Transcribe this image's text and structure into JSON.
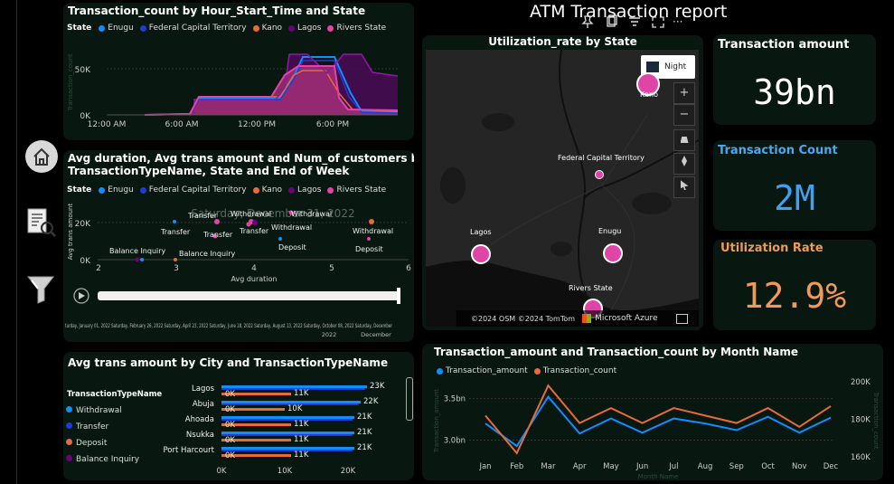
{
  "report_title": "ATM Transaction report",
  "state_legend": {
    "label": "State",
    "items": [
      {
        "name": "Enugu",
        "color": "#118DFF"
      },
      {
        "name": "Federal Capital Territory",
        "color": "#1F3BD6"
      },
      {
        "name": "Kano",
        "color": "#E66C37"
      },
      {
        "name": "Lagos",
        "color": "#6B007B"
      },
      {
        "name": "Rivers State",
        "color": "#E044A7"
      }
    ]
  },
  "hourly": {
    "title": "Transaction_count by Hour_Start_Time and State",
    "ylabel": "Transaction_count",
    "y_ticks": [
      "50K",
      "0K"
    ],
    "x_ticks": [
      "12:00 AM",
      "6:00 AM",
      "12:00 PM",
      "6:00 PM"
    ]
  },
  "scatter": {
    "title_line1": "Avg duration, Avg trans amount and Num_of customers by",
    "title_line2": "TransactionTypeName, State and End of Week",
    "ylabel": "Avg trans amount",
    "xlabel": "Avg duration",
    "y_ticks": [
      "20K",
      "0K"
    ],
    "x_ticks": [
      "2",
      "3",
      "4",
      "5",
      "6"
    ],
    "watermark": "Saturday, December 31, 2022",
    "point_labels": [
      "Transfer",
      "Withdrawal",
      "Withdrawal",
      "Transfer",
      "Transfer",
      "Transfer",
      "Withdrawal",
      "Withdrawal",
      "Deposit",
      "Deposit",
      "Balance Inquiry",
      "Balance Inquiry"
    ],
    "timeline_text": "turday, January 01, 2022 Saturday, February 26, 2022 Saturday, April 23, 2022 Saturday, June 18, 2022 Saturday, August 13, 2022 Saturday, October 08, 2022 Saturday, December",
    "timeline_year": "2022",
    "timeline_end": "December"
  },
  "city_bars": {
    "title": "Avg trans amount by City and TransactionTypeName",
    "legend_title": "TransactionTypeName",
    "legend_items": [
      {
        "name": "Withdrawal",
        "color": "#118DFF"
      },
      {
        "name": "Transfer",
        "color": "#1F3BD6"
      },
      {
        "name": "Deposit",
        "color": "#E66C37"
      },
      {
        "name": "Balance Inquiry",
        "color": "#6B007B"
      }
    ],
    "x_ticks": [
      "0K",
      "10K",
      "20K"
    ],
    "rows": [
      {
        "city": "Lagos",
        "top_label": "23K",
        "mid_label": "11K",
        "zero_label": "0K"
      },
      {
        "city": "Abuja",
        "top_label": "22K",
        "mid_label": "10K",
        "zero_label": "0K"
      },
      {
        "city": "Ahoada",
        "top_label": "21K",
        "mid_label": "11K",
        "zero_label": "0K"
      },
      {
        "city": "Nsukka",
        "top_label": "21K",
        "mid_label": "11K",
        "zero_label": "0K"
      },
      {
        "city": "Port Harcourt",
        "top_label": "21K",
        "mid_label": "11K",
        "zero_label": "0K"
      }
    ]
  },
  "map": {
    "title": "Utilization_rate by State",
    "night_label": "Night",
    "states": [
      "Kano",
      "Federal Capital Territory",
      "Lagos",
      "Enugu",
      "Rivers State"
    ],
    "attribution": "©2024 OSM  ©2024 TomTom",
    "provider": "Microsoft Azure",
    "zoom_in": "+",
    "zoom_out": "−"
  },
  "kpis": {
    "amount_title": "Transaction amount",
    "amount_value": "39bn",
    "count_title": "Transaction Count",
    "count_value": "2M",
    "util_title": "Utilization Rate",
    "util_value": "12.9%"
  },
  "colors": {
    "count_title": "#4AA8F0",
    "count_value": "#3FA0F5",
    "util_title": "#F0995A",
    "util_value": "#F0995A",
    "panel_bg": "#081810"
  },
  "monthly": {
    "title": "Transaction_amount and Transaction_count by Month Name",
    "legend": [
      {
        "name": "Transaction_amount",
        "color": "#118DFF"
      },
      {
        "name": "Transaction_count",
        "color": "#E66C37"
      }
    ],
    "y_left_ticks": [
      "3.5bn",
      "3.0bn"
    ],
    "y_right_ticks": [
      "200K",
      "180K",
      "160K"
    ],
    "y_left_label": "Transaction_amount",
    "y_right_label": "Transaction_count",
    "xlabel": "Month Name"
  },
  "chart_data": {
    "type": "line",
    "title": "Transaction_amount and Transaction_count by Month Name",
    "categories": [
      "Jan",
      "Feb",
      "Mar",
      "Apr",
      "May",
      "Jun",
      "Jul",
      "Aug",
      "Sep",
      "Oct",
      "Nov",
      "Dec"
    ],
    "series": [
      {
        "name": "Transaction_amount",
        "axis": "left",
        "values": [
          3.2,
          2.93,
          3.52,
          3.08,
          3.26,
          3.09,
          3.26,
          3.2,
          3.12,
          3.28,
          3.09,
          3.27
        ]
      },
      {
        "name": "Transaction_count",
        "axis": "right",
        "values": [
          182000,
          162000,
          198000,
          178000,
          186000,
          178000,
          186000,
          182000,
          178000,
          186000,
          176000,
          187000
        ]
      }
    ],
    "ylim_left": [
      2.8,
      3.7
    ],
    "ylim_right": [
      160000,
      200000
    ],
    "xlabel": "Month Name",
    "ylabel": "Transaction_amount",
    "y2label": "Transaction_count",
    "legend": "top-left",
    "grid": true
  }
}
